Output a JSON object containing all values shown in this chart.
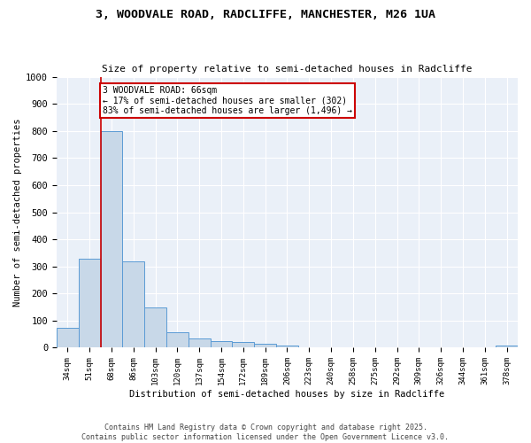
{
  "title1": "3, WOODVALE ROAD, RADCLIFFE, MANCHESTER, M26 1UA",
  "title2": "Size of property relative to semi-detached houses in Radcliffe",
  "xlabel": "Distribution of semi-detached houses by size in Radcliffe",
  "ylabel": "Number of semi-detached properties",
  "categories": [
    "34sqm",
    "51sqm",
    "68sqm",
    "86sqm",
    "103sqm",
    "120sqm",
    "137sqm",
    "154sqm",
    "172sqm",
    "189sqm",
    "206sqm",
    "223sqm",
    "240sqm",
    "258sqm",
    "275sqm",
    "292sqm",
    "309sqm",
    "326sqm",
    "344sqm",
    "361sqm",
    "378sqm"
  ],
  "values": [
    75,
    330,
    800,
    320,
    150,
    57,
    35,
    25,
    20,
    13,
    8,
    0,
    0,
    0,
    0,
    0,
    0,
    0,
    0,
    0,
    8
  ],
  "bar_color": "#c8d8e8",
  "bar_edge_color": "#5b9bd5",
  "vline_color": "#cc0000",
  "annotation_text": "3 WOODVALE ROAD: 66sqm\n← 17% of semi-detached houses are smaller (302)\n83% of semi-detached houses are larger (1,496) →",
  "ylim": [
    0,
    1000
  ],
  "yticks": [
    0,
    100,
    200,
    300,
    400,
    500,
    600,
    700,
    800,
    900,
    1000
  ],
  "bg_color": "#eaf0f8",
  "grid_color": "#ffffff",
  "footer1": "Contains HM Land Registry data © Crown copyright and database right 2025.",
  "footer2": "Contains public sector information licensed under the Open Government Licence v3.0."
}
